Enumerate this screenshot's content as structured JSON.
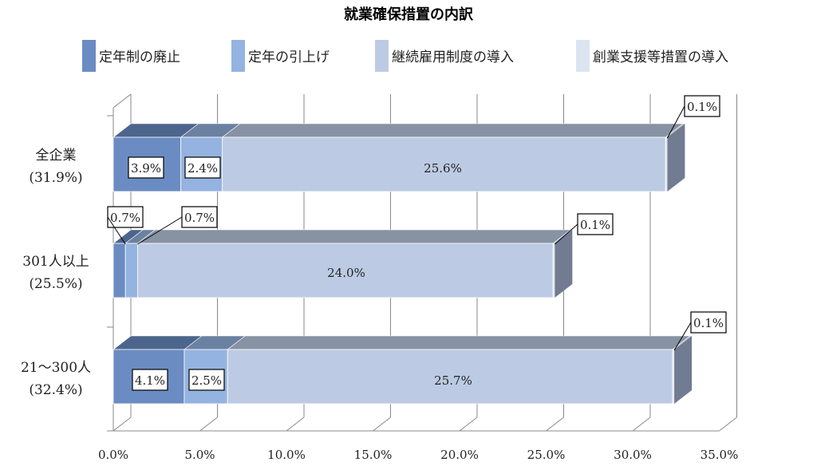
{
  "chart_data": {
    "type": "bar",
    "orientation": "horizontal",
    "stacked": true,
    "style": "3d",
    "title": "就業確保措置の内訳",
    "categories": [
      "全企業\n(31.9%)",
      "301人以上\n(25.5%)",
      "21～300人\n(32.4%)"
    ],
    "series": [
      {
        "name": "定年制の廃止",
        "color": "#6a8cc2",
        "values": [
          3.9,
          0.7,
          4.1
        ]
      },
      {
        "name": "定年の引上げ",
        "color": "#94b3e0",
        "values": [
          2.4,
          0.7,
          2.5
        ]
      },
      {
        "name": "継続雇用制度の導入",
        "color": "#bccbe3",
        "values": [
          25.6,
          24.0,
          25.7
        ]
      },
      {
        "name": "創業支援等措置の導入",
        "color": "#dce4f0",
        "values": [
          0.1,
          0.1,
          0.1
        ]
      }
    ],
    "data_labels": [
      [
        "3.9%",
        "2.4%",
        "25.6%",
        "0.1%"
      ],
      [
        "0.7%",
        "0.7%",
        "24.0%",
        "0.1%"
      ],
      [
        "4.1%",
        "2.5%",
        "25.7%",
        "0.1%"
      ]
    ],
    "xlim": [
      0,
      35
    ],
    "xticks": [
      "0.0%",
      "5.0%",
      "10.0%",
      "15.0%",
      "20.0%",
      "25.0%",
      "30.0%",
      "35.0%"
    ],
    "grid": true,
    "legend": "top"
  }
}
